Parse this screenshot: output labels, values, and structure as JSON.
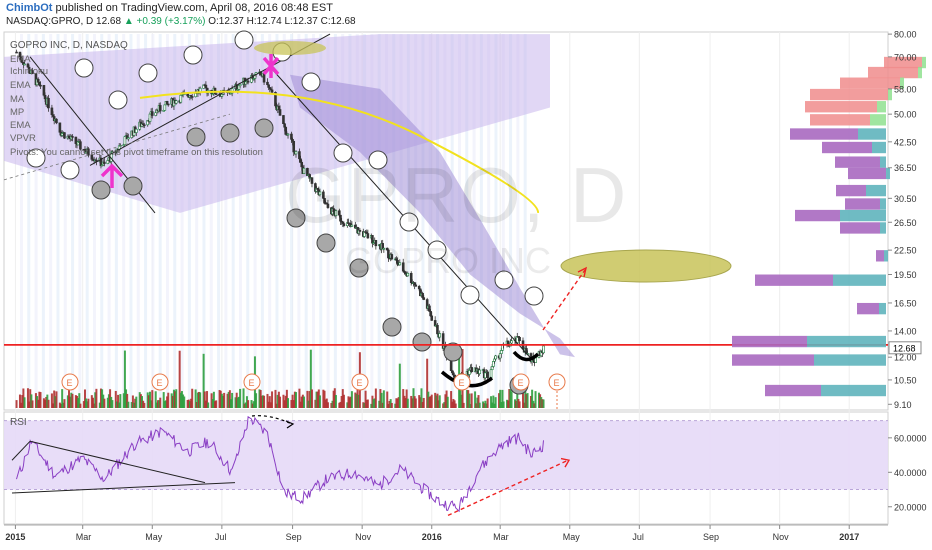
{
  "header": {
    "brand": "ChimbOt",
    "published": "published on TradingView.com, April 08, 2016 08:48 EST"
  },
  "quote": {
    "symbol": "NASDAQ:GPRO, D",
    "last": "12.68",
    "change": "+0.39 (+3.17%)",
    "open": "O:12.37",
    "high": "H:12.74",
    "low": "L:12.37",
    "close": "C:12.68"
  },
  "symbol_title": "GOPRO INC, D, NASDAQ",
  "indicators": [
    "EMA",
    "Ichimoku",
    "EMA",
    "MA",
    "MP",
    "EMA",
    "VPVR",
    "Pivots: You cannot set this pivot timeframe on this resolution"
  ],
  "watermark": {
    "main": "GPRO, D",
    "sub": "GOPRO INC"
  },
  "colors": {
    "up_candle": "#1a7a3a",
    "down_candle": "#333333",
    "volume_up": "#2e9e3e",
    "volume_down": "#b03030",
    "support_line": "#ee2222",
    "ema_yellow": "#f2e21e",
    "cloud": "#9a86d4",
    "channel": "#c8b6ec",
    "pivot_marker": "#ee33cc",
    "ellipse_fill": "#c8c45a",
    "rsi_band": "#e6d9f7",
    "rsi_line": "#8a3fc4",
    "vp_purple": "#a969c0",
    "vp_teal": "#5fb4bd",
    "vp_green": "#8fe08f",
    "vp_red": "#f08c8c"
  },
  "chart_data": [
    {
      "type": "candlestick",
      "name": "GPRO daily price",
      "price_axis": {
        "ylim": [
          8.8,
          81
        ],
        "ticks": [
          "80.00",
          "70.00",
          "58.00",
          "50.00",
          "42.50",
          "36.50",
          "30.50",
          "26.50",
          "22.50",
          "19.50",
          "16.50",
          "14.00",
          "12.00",
          "10.50",
          "9.10"
        ]
      },
      "time_axis": {
        "ticks": [
          "2015",
          "Mar",
          "May",
          "Jul",
          "Sep",
          "Nov",
          "2016",
          "Mar",
          "May",
          "Jul",
          "Sep",
          "Nov",
          "2017"
        ]
      },
      "last_price_label": "12.68",
      "support_level": 12.9,
      "anchors": [
        [
          "2015-01-02",
          72
        ],
        [
          "2015-01-20",
          60
        ],
        [
          "2015-02-10",
          45
        ],
        [
          "2015-03-05",
          40
        ],
        [
          "2015-03-20",
          37
        ],
        [
          "2015-04-10",
          44
        ],
        [
          "2015-05-05",
          51
        ],
        [
          "2015-05-25",
          55
        ],
        [
          "2015-06-15",
          58
        ],
        [
          "2015-07-05",
          56
        ],
        [
          "2015-07-25",
          62
        ],
        [
          "2015-08-05",
          63
        ],
        [
          "2015-08-15",
          55
        ],
        [
          "2015-08-25",
          46
        ],
        [
          "2015-09-10",
          36
        ],
        [
          "2015-10-01",
          29
        ],
        [
          "2015-10-20",
          26
        ],
        [
          "2015-11-10",
          24
        ],
        [
          "2015-12-01",
          21
        ],
        [
          "2015-12-20",
          18
        ],
        [
          "2016-01-08",
          13.5
        ],
        [
          "2016-01-22",
          10.5
        ],
        [
          "2016-02-05",
          11.2
        ],
        [
          "2016-02-19",
          10.8
        ],
        [
          "2016-03-04",
          12.8
        ],
        [
          "2016-03-18",
          13.3
        ],
        [
          "2016-03-28",
          11.6
        ],
        [
          "2016-04-08",
          12.68
        ]
      ],
      "earnings_markers": [
        "E",
        "E",
        "E",
        "E",
        "E",
        "E",
        "E"
      ]
    },
    {
      "type": "bar",
      "name": "Volume",
      "note": "volume bars along the bottom of the price pane"
    },
    {
      "type": "line",
      "name": "RSI",
      "label": "RSI",
      "ylim": [
        10,
        75
      ],
      "ticks": [
        "60.0000",
        "40.0000",
        "20.0000"
      ],
      "band": [
        30,
        70
      ],
      "anchors": [
        [
          "2015-01-02",
          35
        ],
        [
          "2015-01-15",
          58
        ],
        [
          "2015-02-05",
          38
        ],
        [
          "2015-03-01",
          48
        ],
        [
          "2015-03-20",
          36
        ],
        [
          "2015-04-15",
          56
        ],
        [
          "2015-05-10",
          64
        ],
        [
          "2015-06-01",
          52
        ],
        [
          "2015-06-20",
          58
        ],
        [
          "2015-07-10",
          40
        ],
        [
          "2015-07-25",
          72
        ],
        [
          "2015-08-10",
          62
        ],
        [
          "2015-08-25",
          28
        ],
        [
          "2015-09-10",
          25
        ],
        [
          "2015-10-01",
          36
        ],
        [
          "2015-10-25",
          40
        ],
        [
          "2015-11-15",
          32
        ],
        [
          "2015-12-05",
          42
        ],
        [
          "2015-12-25",
          30
        ],
        [
          "2016-01-10",
          22
        ],
        [
          "2016-01-25",
          20
        ],
        [
          "2016-02-10",
          40
        ],
        [
          "2016-02-25",
          52
        ],
        [
          "2016-03-08",
          58
        ],
        [
          "2016-03-18",
          60
        ],
        [
          "2016-03-28",
          50
        ],
        [
          "2016-04-08",
          56
        ]
      ]
    },
    {
      "type": "bar",
      "name": "Volume profile (VPVR)",
      "orientation": "horizontal",
      "note": "volume-by-price histogram drawn against the right price scale"
    }
  ]
}
